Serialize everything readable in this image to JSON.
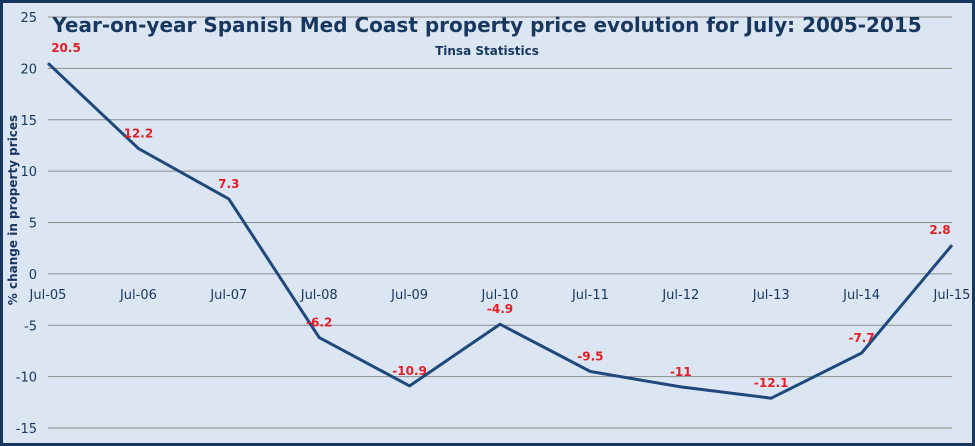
{
  "chart_data": {
    "type": "line",
    "title": "Year-on-year Spanish Med Coast property price evolution for July: 2005-2015",
    "subtitle": "Tinsa Statistics",
    "ylabel": "% change in property prices",
    "xlabel": "",
    "categories": [
      "Jul-05",
      "Jul-06",
      "Jul-07",
      "Jul-08",
      "Jul-09",
      "Jul-10",
      "Jul-11",
      "Jul-12",
      "Jul-13",
      "Jul-14",
      "Jul-15"
    ],
    "series": [
      {
        "values": [
          20.5,
          12.2,
          7.3,
          -6.2,
          -10.9,
          -4.9,
          -9.5,
          -11,
          -12.1,
          -7.7,
          2.8
        ]
      }
    ],
    "data_labels": [
      "20.5",
      "12.2",
      "7.3",
      "-6.2",
      "-10.9",
      "-4.9",
      "-9.5",
      "-11",
      "-12.1",
      "-7.7",
      "2.8"
    ],
    "ylim": [
      -15,
      25
    ],
    "yticks": [
      -15,
      -10,
      -5,
      0,
      5,
      10,
      15,
      20,
      25
    ],
    "grid": true,
    "colors": {
      "line": "#1f497d",
      "labels": "#e31e24",
      "title": "#17375e",
      "plot_bg": "#dce6f2",
      "frame": "#17375e",
      "grid": "#8c8c8c"
    }
  }
}
